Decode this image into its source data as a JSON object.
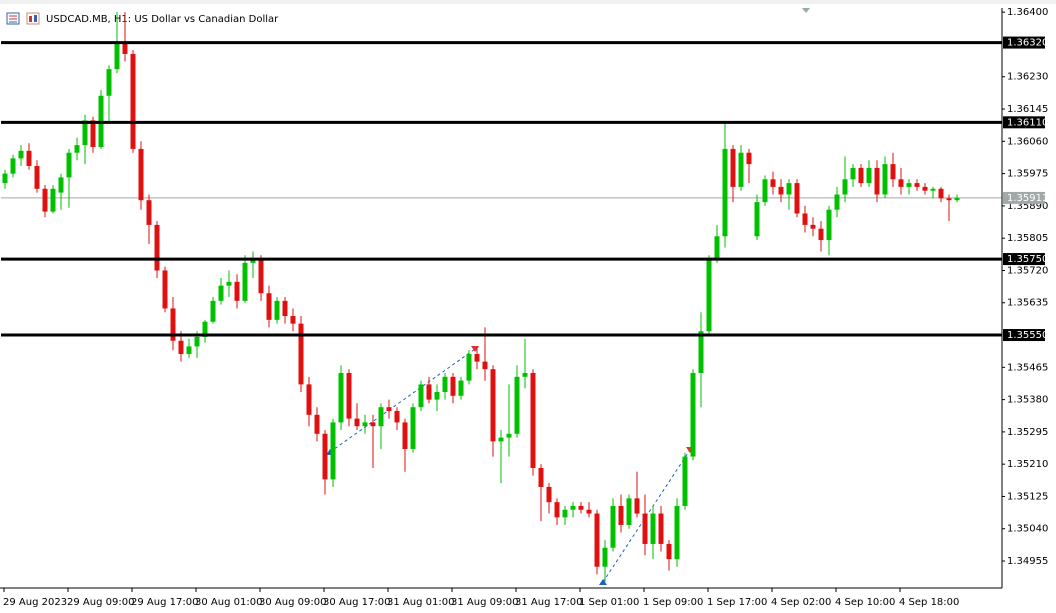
{
  "chart_data": {
    "type": "candlestick",
    "title": "USDCAD.MB, H1: US Dollar vs Canadian Dollar",
    "up_color": "#00c000",
    "down_color": "#e01010",
    "categories": [
      "29 Aug 2023",
      null,
      null,
      null,
      null,
      null,
      null,
      null,
      "29 Aug 09:00",
      null,
      null,
      null,
      null,
      null,
      null,
      null,
      "29 Aug 17:00",
      null,
      null,
      null,
      null,
      null,
      null,
      null,
      "30 Aug 01:00",
      null,
      null,
      null,
      null,
      null,
      null,
      null,
      "30 Aug 09:00",
      null,
      null,
      null,
      null,
      null,
      null,
      null,
      "30 Aug 17:00",
      null,
      null,
      null,
      null,
      null,
      null,
      null,
      "31 Aug 01:00",
      null,
      null,
      null,
      null,
      null,
      null,
      null,
      "31 Aug 09:00",
      null,
      null,
      null,
      null,
      null,
      null,
      null,
      "31 Aug 17:00",
      null,
      null,
      null,
      null,
      null,
      null,
      null,
      "1 Sep 01:00",
      null,
      null,
      null,
      null,
      null,
      null,
      null,
      "1 Sep 09:00",
      null,
      null,
      null,
      null,
      null,
      null,
      null,
      "1 Sep 17:00",
      null,
      null,
      null,
      null,
      null,
      null,
      null,
      "4 Sep 02:00",
      null,
      null,
      null,
      null,
      null,
      null,
      null,
      "4 Sep 10:00",
      null,
      null,
      null,
      null,
      null,
      null,
      null,
      "4 Sep 18:00",
      null,
      null,
      null,
      null,
      null,
      null,
      null
    ],
    "open": [
      1.3595,
      1.35975,
      1.36015,
      1.36035,
      1.35995,
      1.35935,
      1.35875,
      1.35925,
      1.35965,
      1.3603,
      1.3605,
      1.36115,
      1.36045,
      1.3618,
      1.3625,
      1.3632,
      1.3629,
      1.3604,
      1.35905,
      1.3584,
      1.3572,
      1.3562,
      1.35535,
      1.355,
      1.3552,
      1.35545,
      1.35585,
      1.3564,
      1.3568,
      1.3569,
      1.3564,
      1.3574,
      1.3575,
      1.3566,
      1.3559,
      1.3564,
      1.356,
      1.3558,
      1.3542,
      1.3534,
      1.3529,
      1.3517,
      1.3532,
      1.3545,
      1.3533,
      1.3531,
      1.3532,
      1.3531,
      1.3536,
      1.3535,
      1.3532,
      1.3525,
      1.3536,
      1.3542,
      1.3538,
      1.354,
      1.3544,
      1.3539,
      1.3543,
      1.355,
      1.3548,
      1.3546,
      1.3527,
      1.3528,
      1.3529,
      1.3544,
      1.3545,
      1.352,
      1.3515,
      1.3511,
      1.3507,
      1.3509,
      1.351,
      1.3509,
      1.3508,
      1.3494,
      1.3499,
      1.351,
      1.3505,
      1.3512,
      1.3508,
      1.35,
      1.3508,
      1.35,
      1.3496,
      1.351,
      1.3523,
      1.3545,
      1.3556,
      1.3575,
      1.3581,
      1.3604,
      1.3594,
      1.3603,
      1.3581,
      1.359,
      1.3596,
      1.3594,
      1.3592,
      1.3595,
      1.3587,
      1.3584,
      1.3583,
      1.358,
      1.3588,
      1.3592,
      1.3596,
      1.3599,
      1.3595,
      1.3599,
      1.3592,
      1.36,
      1.3596,
      1.3594,
      1.3595,
      1.3594,
      1.3593,
      1.35935,
      1.3591,
      1.35905
    ],
    "high": [
      1.35985,
      1.36025,
      1.3605,
      1.36055,
      1.3601,
      1.35945,
      1.35945,
      1.35975,
      1.3604,
      1.3607,
      1.3613,
      1.36125,
      1.36195,
      1.3626,
      1.364,
      1.364,
      1.363,
      1.3606,
      1.3592,
      1.3585,
      1.3573,
      1.3565,
      1.3556,
      1.3554,
      1.3556,
      1.3559,
      1.3565,
      1.357,
      1.3572,
      1.3571,
      1.3576,
      1.3577,
      1.3576,
      1.3568,
      1.3565,
      1.3565,
      1.3562,
      1.356,
      1.3544,
      1.3536,
      1.353,
      1.3533,
      1.3547,
      1.3546,
      1.3537,
      1.3534,
      1.3534,
      1.3537,
      1.3538,
      1.3536,
      1.3533,
      1.3537,
      1.3543,
      1.3544,
      1.3542,
      1.3545,
      1.3545,
      1.3544,
      1.3551,
      1.3552,
      1.3557,
      1.3547,
      1.353,
      1.3542,
      1.3547,
      1.3554,
      1.3546,
      1.3521,
      1.3516,
      1.3512,
      1.351,
      1.3511,
      1.3511,
      1.3511,
      1.3509,
      1.3501,
      1.3512,
      1.3513,
      1.3513,
      1.3519,
      1.3513,
      1.351,
      1.351,
      1.3501,
      1.3512,
      1.3524,
      1.3546,
      1.3561,
      1.3576,
      1.3584,
      1.3611,
      1.3605,
      1.3605,
      1.3604,
      1.3592,
      1.3597,
      1.3598,
      1.3596,
      1.3596,
      1.3596,
      1.3589,
      1.3586,
      1.3585,
      1.3589,
      1.3594,
      1.3602,
      1.36,
      1.36,
      1.3601,
      1.3601,
      1.3602,
      1.3603,
      1.3599,
      1.3596,
      1.3596,
      1.3595,
      1.3594,
      1.3594,
      1.3592,
      1.3592
    ],
    "low": [
      1.35935,
      1.35965,
      1.35995,
      1.35985,
      1.35925,
      1.3586,
      1.3587,
      1.3588,
      1.35885,
      1.3601,
      1.36,
      1.3603,
      1.3604,
      1.3611,
      1.3624,
      1.3627,
      1.3603,
      1.3588,
      1.3579,
      1.357,
      1.3561,
      1.3551,
      1.3548,
      1.3549,
      1.3549,
      1.3553,
      1.3558,
      1.3563,
      1.3565,
      1.3562,
      1.35635,
      1.357,
      1.3564,
      1.3557,
      1.3558,
      1.3558,
      1.3556,
      1.354,
      1.3531,
      1.3527,
      1.3513,
      1.3515,
      1.353,
      1.3531,
      1.353,
      1.3529,
      1.352,
      1.3525,
      1.3533,
      1.353,
      1.3519,
      1.3524,
      1.3535,
      1.3537,
      1.3535,
      1.3538,
      1.3537,
      1.3538,
      1.3542,
      1.3546,
      1.3543,
      1.3523,
      1.3516,
      1.3523,
      1.3528,
      1.3541,
      1.3518,
      1.3506,
      1.3508,
      1.3505,
      1.3505,
      1.3507,
      1.3508,
      1.3507,
      1.3492,
      1.349,
      1.3498,
      1.3503,
      1.3504,
      1.3507,
      1.3497,
      1.3496,
      1.3498,
      1.3493,
      1.3494,
      1.3509,
      1.3522,
      1.3536,
      1.3555,
      1.3574,
      1.3578,
      1.359,
      1.3593,
      1.3595,
      1.358,
      1.3589,
      1.3592,
      1.359,
      1.3588,
      1.3586,
      1.3582,
      1.3581,
      1.3577,
      1.3576,
      1.3586,
      1.359,
      1.3594,
      1.3594,
      1.3594,
      1.359,
      1.3591,
      1.3594,
      1.3592,
      1.3592,
      1.3593,
      1.3592,
      1.3591,
      1.359,
      1.3585,
      1.359
    ],
    "close": [
      1.35975,
      1.36015,
      1.36035,
      1.35995,
      1.35935,
      1.35875,
      1.35935,
      1.35965,
      1.3603,
      1.3605,
      1.36115,
      1.36045,
      1.3618,
      1.3625,
      1.3632,
      1.3629,
      1.3604,
      1.35905,
      1.3584,
      1.3572,
      1.3562,
      1.35535,
      1.355,
      1.3552,
      1.35545,
      1.35585,
      1.3564,
      1.3568,
      1.3569,
      1.3564,
      1.3574,
      1.3575,
      1.3566,
      1.3559,
      1.3564,
      1.356,
      1.3558,
      1.3542,
      1.3534,
      1.3529,
      1.3517,
      1.3532,
      1.3545,
      1.3533,
      1.3531,
      1.3532,
      1.3531,
      1.3536,
      1.3535,
      1.3532,
      1.3525,
      1.3536,
      1.3542,
      1.3538,
      1.354,
      1.3544,
      1.3539,
      1.3543,
      1.355,
      1.3548,
      1.3546,
      1.3527,
      1.3528,
      1.3529,
      1.3544,
      1.3545,
      1.352,
      1.3515,
      1.3511,
      1.3507,
      1.3509,
      1.351,
      1.3509,
      1.3508,
      1.3494,
      1.3499,
      1.351,
      1.3505,
      1.3512,
      1.3508,
      1.35,
      1.3508,
      1.35,
      1.3496,
      1.351,
      1.3523,
      1.3545,
      1.3556,
      1.3575,
      1.3581,
      1.3604,
      1.3594,
      1.3603,
      1.36,
      1.359,
      1.3596,
      1.3594,
      1.3592,
      1.3595,
      1.3587,
      1.3584,
      1.3583,
      1.358,
      1.3588,
      1.3592,
      1.3596,
      1.3599,
      1.3595,
      1.3599,
      1.3592,
      1.36,
      1.3596,
      1.3594,
      1.3595,
      1.3594,
      1.3593,
      1.35935,
      1.3591,
      1.35905,
      1.35911
    ],
    "ylim": [
      1.34884,
      1.36411
    ],
    "yticks": [
      {
        "value": 1.364,
        "label": "1.36400"
      },
      {
        "value": 1.3623,
        "label": "1.36230"
      },
      1.36145,
      {
        "value": 1.3606,
        "label": "1.36060"
      },
      1.35975,
      {
        "value": 1.3589,
        "label": "1.35890"
      },
      1.35805,
      {
        "value": 1.3572,
        "label": "1.35720"
      },
      1.35635,
      1.35465,
      {
        "value": 1.3538,
        "label": "1.35380"
      },
      1.35295,
      {
        "value": 1.3521,
        "label": "1.35210"
      },
      1.35125,
      {
        "value": 1.3504,
        "label": "1.35040"
      },
      1.34955
    ],
    "levels": [
      {
        "value": 1.3632,
        "label": "1.36320"
      },
      {
        "value": 1.3611,
        "label": "1.36110"
      },
      {
        "value": 1.3575,
        "label": "1.35750"
      },
      {
        "value": 1.3555,
        "label": "1.35550"
      }
    ],
    "current_price": 1.35911
  }
}
